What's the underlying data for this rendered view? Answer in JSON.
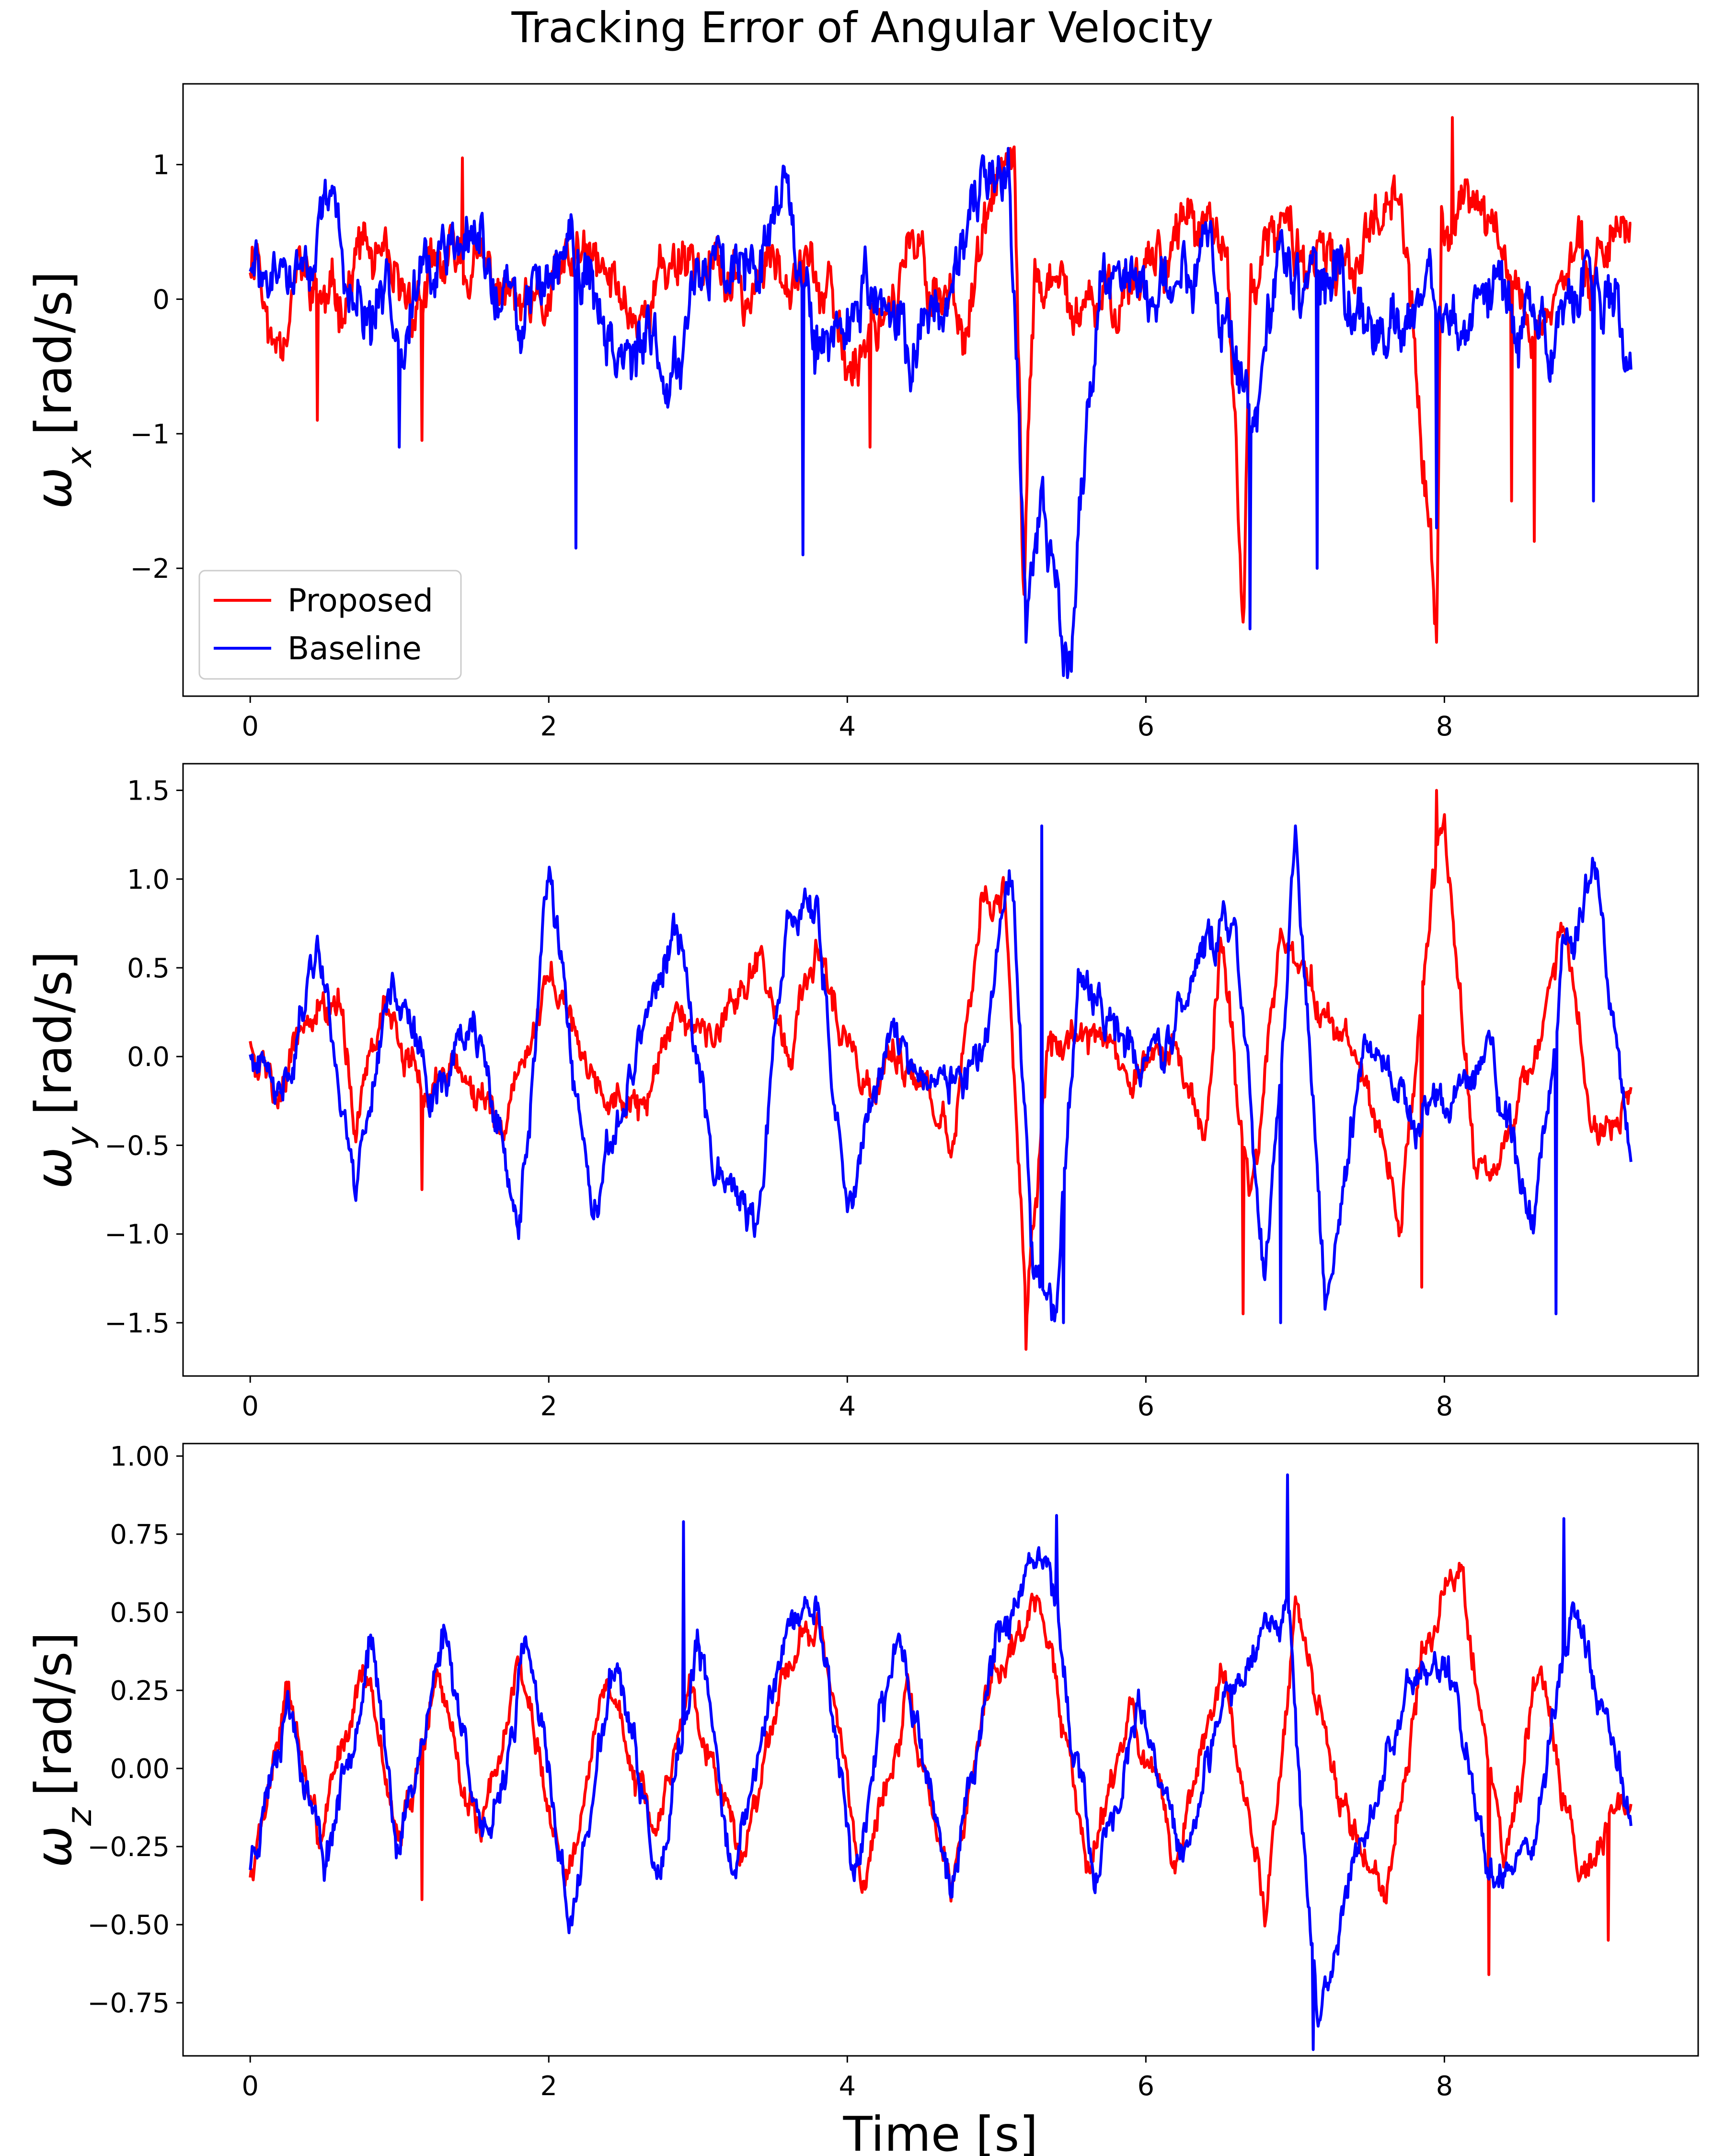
{
  "figure_title": "Tracking Error of Angular Velocity",
  "colors": {
    "proposed": "#ff0000",
    "baseline": "#0000ff"
  },
  "legend": {
    "placement": "lower-left",
    "entries": [
      "Proposed",
      "Baseline"
    ]
  },
  "chart_data": [
    {
      "type": "line",
      "title": "Tracking Error of Angular Velocity",
      "ylabel_symbol": "ω",
      "ylabel_sub": "x",
      "ylabel_unit": "[rad/s]",
      "xlabel": "",
      "xlim": [
        -0.45,
        9.7
      ],
      "ylim": [
        -2.95,
        1.6
      ],
      "xticks": [
        0,
        2,
        4,
        6,
        8
      ],
      "xtick_labels": [
        "0",
        "2",
        "4",
        "6",
        "8"
      ],
      "yticks": [
        1,
        0,
        -1,
        -2
      ],
      "ytick_labels": [
        "1",
        "0",
        "−1",
        "−2"
      ],
      "t_end": 9.25,
      "series": [
        {
          "name": "Proposed",
          "color": "#ff0000",
          "key_t": [
            0,
            0.05,
            0.1,
            0.15,
            0.3,
            0.55,
            0.75,
            1.0,
            1.4,
            1.65,
            1.9,
            2.2,
            2.6,
            2.9,
            3.3,
            3.7,
            4.0,
            4.4,
            4.8,
            5.05,
            5.12,
            5.18,
            5.25,
            5.6,
            6.0,
            6.3,
            6.55,
            6.65,
            6.7,
            6.9,
            7.3,
            7.7,
            7.95,
            7.98,
            8.2,
            8.6,
            9.0,
            9.25
          ],
          "key_v": [
            0.3,
            0.5,
            -0.1,
            -0.4,
            0.2,
            -0.1,
            0.4,
            -0.1,
            0.3,
            0.1,
            -0.2,
            0.3,
            -0.1,
            0.4,
            0.0,
            0.5,
            -0.5,
            0.3,
            -0.1,
            1.0,
            0.8,
            -2.3,
            0.2,
            -0.2,
            0.3,
            0.6,
            0.2,
            -2.4,
            0.1,
            0.5,
            0.1,
            1.0,
            -2.5,
            0.5,
            0.8,
            -0.2,
            0.4,
            0.6
          ],
          "noise": 0.28,
          "spikes": [
            [
              0.45,
              -0.9
            ],
            [
              1.15,
              -1.05
            ],
            [
              1.42,
              1.05
            ],
            [
              3.7,
              -1.2
            ],
            [
              4.15,
              -1.1
            ],
            [
              6.65,
              -2.4
            ],
            [
              7.95,
              -2.55
            ],
            [
              8.05,
              1.35
            ],
            [
              8.45,
              -1.5
            ],
            [
              8.6,
              -1.8
            ]
          ],
          "seed": 11
        },
        {
          "name": "Baseline",
          "color": "#0000ff",
          "key_t": [
            0,
            0.1,
            0.3,
            0.55,
            0.8,
            1.1,
            1.5,
            1.8,
            2.1,
            2.4,
            2.8,
            3.0,
            3.3,
            3.6,
            3.8,
            4.1,
            4.4,
            4.8,
            5.08,
            5.2,
            5.3,
            5.5,
            5.7,
            6.0,
            6.4,
            6.7,
            6.9,
            7.2,
            7.6,
            8.0,
            8.3,
            8.7,
            9.0,
            9.25
          ],
          "key_v": [
            0.2,
            0.1,
            0.2,
            0.6,
            -0.3,
            0.1,
            0.4,
            -0.2,
            0.5,
            -0.2,
            -0.6,
            0.3,
            0.4,
            0.9,
            -0.5,
            0.1,
            -0.4,
            0.3,
            1.2,
            -2.2,
            -1.5,
            -2.6,
            0.3,
            0.0,
            0.4,
            -1.0,
            0.2,
            0.1,
            -0.3,
            0.0,
            0.1,
            -0.4,
            0.3,
            -0.3
          ],
          "noise": 0.32,
          "spikes": [
            [
              1.0,
              -1.1
            ],
            [
              2.18,
              -1.85
            ],
            [
              3.7,
              -1.9
            ],
            [
              5.2,
              -2.55
            ],
            [
              5.48,
              -2.75
            ],
            [
              6.7,
              -2.45
            ],
            [
              7.15,
              -2.0
            ],
            [
              7.95,
              -1.7
            ],
            [
              9.0,
              -1.5
            ]
          ],
          "seed": 29
        }
      ]
    },
    {
      "type": "line",
      "ylabel_symbol": "ω",
      "ylabel_sub": "y",
      "ylabel_unit": "[rad/s]",
      "xlabel": "",
      "xlim": [
        -0.45,
        9.7
      ],
      "ylim": [
        -1.8,
        1.65
      ],
      "xticks": [
        0,
        2,
        4,
        6,
        8
      ],
      "xtick_labels": [
        "0",
        "2",
        "4",
        "6",
        "8"
      ],
      "yticks": [
        1.5,
        1.0,
        0.5,
        0.0,
        -0.5,
        -1.0,
        -1.5
      ],
      "ytick_labels": [
        "1.5",
        "1.0",
        "0.5",
        "0.0",
        "−0.5",
        "−1.0",
        "−1.5"
      ],
      "t_end": 9.25,
      "series": [
        {
          "name": "Proposed",
          "color": "#ff0000",
          "key_t": [
            0,
            0.15,
            0.4,
            0.6,
            0.7,
            0.9,
            1.15,
            1.3,
            1.7,
            2.0,
            2.3,
            2.6,
            2.9,
            3.1,
            3.4,
            3.6,
            3.8,
            4.1,
            4.4,
            4.7,
            4.9,
            5.05,
            5.2,
            5.35,
            5.6,
            5.9,
            6.2,
            6.4,
            6.5,
            6.7,
            6.9,
            7.2,
            7.5,
            7.7,
            7.9,
            8.0,
            8.2,
            8.5,
            8.8,
            9.0,
            9.25
          ],
          "key_v": [
            0.1,
            -0.2,
            0.3,
            0.3,
            -0.4,
            0.4,
            -0.3,
            0.0,
            -0.5,
            0.5,
            -0.1,
            -0.3,
            0.2,
            0.1,
            0.6,
            0.0,
            0.6,
            -0.2,
            0.0,
            -0.5,
            0.8,
            0.9,
            -1.4,
            0.0,
            0.2,
            -0.1,
            0.0,
            -0.5,
            0.7,
            -0.8,
            0.6,
            0.3,
            -0.2,
            -1.0,
            0.8,
            1.3,
            -0.6,
            -0.3,
            0.7,
            -0.4,
            -0.1
          ],
          "noise": 0.14,
          "spikes": [
            [
              1.15,
              -0.75
            ],
            [
              5.2,
              -1.65
            ],
            [
              6.65,
              -1.45
            ],
            [
              7.95,
              1.5
            ],
            [
              7.85,
              -1.3
            ]
          ],
          "seed": 5
        },
        {
          "name": "Baseline",
          "color": "#0000ff",
          "key_t": [
            0,
            0.2,
            0.45,
            0.7,
            0.95,
            1.2,
            1.5,
            1.8,
            2.0,
            2.3,
            2.6,
            2.85,
            3.1,
            3.4,
            3.6,
            3.8,
            4.0,
            4.3,
            4.6,
            4.9,
            5.1,
            5.25,
            5.4,
            5.55,
            5.8,
            6.1,
            6.4,
            6.6,
            6.8,
            7.0,
            7.2,
            7.5,
            7.8,
            8.0,
            8.3,
            8.6,
            8.8,
            9.0,
            9.25
          ],
          "key_v": [
            0.0,
            -0.3,
            0.7,
            -0.7,
            0.5,
            -0.2,
            0.2,
            -1.0,
            1.0,
            -1.0,
            0.1,
            0.7,
            -0.5,
            -1.0,
            0.8,
            0.8,
            -0.9,
            0.2,
            -0.2,
            0.0,
            0.9,
            -1.3,
            -1.4,
            0.4,
            0.1,
            0.0,
            0.6,
            0.8,
            -1.3,
            1.2,
            -1.3,
            0.2,
            -0.5,
            -0.3,
            0.0,
            -0.9,
            0.5,
            1.0,
            -0.6
          ],
          "noise": 0.15,
          "spikes": [
            [
              5.45,
              -1.5
            ],
            [
              6.9,
              -1.5
            ],
            [
              8.75,
              -1.45
            ],
            [
              7.0,
              1.3
            ],
            [
              5.3,
              1.3
            ]
          ],
          "seed": 41
        }
      ]
    },
    {
      "type": "line",
      "ylabel_symbol": "ω",
      "ylabel_sub": "z",
      "ylabel_unit": "[rad/s]",
      "xlabel": "Time [s]",
      "xlim": [
        -0.45,
        9.7
      ],
      "ylim": [
        -0.92,
        1.04
      ],
      "xticks": [
        0,
        2,
        4,
        6,
        8
      ],
      "xtick_labels": [
        "0",
        "2",
        "4",
        "6",
        "8"
      ],
      "yticks": [
        1.0,
        0.75,
        0.5,
        0.25,
        0.0,
        -0.25,
        -0.5,
        -0.75
      ],
      "ytick_labels": [
        "1.00",
        "0.75",
        "0.50",
        "0.25",
        "0.00",
        "−0.25",
        "−0.50",
        "−0.75"
      ],
      "t_end": 9.25,
      "series": [
        {
          "name": "Proposed",
          "color": "#ff0000",
          "key_t": [
            0,
            0.25,
            0.45,
            0.75,
            1.0,
            1.25,
            1.55,
            1.8,
            2.1,
            2.4,
            2.7,
            2.95,
            3.3,
            3.55,
            3.8,
            4.1,
            4.4,
            4.7,
            4.95,
            5.3,
            5.6,
            5.9,
            6.2,
            6.5,
            6.8,
            7.0,
            7.3,
            7.6,
            7.85,
            8.1,
            8.4,
            8.65,
            8.9,
            9.25
          ],
          "key_v": [
            -0.35,
            0.28,
            -0.25,
            0.35,
            -0.25,
            0.3,
            -0.25,
            0.35,
            -0.35,
            0.3,
            -0.25,
            0.3,
            -0.3,
            0.3,
            0.5,
            -0.35,
            0.2,
            -0.4,
            0.3,
            0.55,
            -0.3,
            0.2,
            -0.3,
            0.3,
            -0.45,
            0.5,
            -0.1,
            -0.4,
            0.35,
            0.65,
            -0.3,
            0.3,
            -0.3,
            -0.1
          ],
          "noise": 0.07,
          "spikes": [
            [
              1.15,
              -0.42
            ],
            [
              8.3,
              -0.66
            ],
            [
              9.1,
              -0.55
            ]
          ],
          "seed": 7
        },
        {
          "name": "Baseline",
          "color": "#0000ff",
          "key_t": [
            0,
            0.25,
            0.5,
            0.8,
            1.0,
            1.3,
            1.6,
            1.85,
            2.15,
            2.45,
            2.75,
            3.0,
            3.25,
            3.55,
            3.8,
            4.05,
            4.35,
            4.7,
            5.0,
            5.35,
            5.65,
            5.95,
            6.25,
            6.55,
            6.8,
            6.95,
            7.15,
            7.45,
            7.8,
            8.0,
            8.3,
            8.6,
            8.85,
            9.25
          ],
          "key_v": [
            -0.3,
            0.25,
            -0.3,
            0.4,
            -0.25,
            0.45,
            -0.3,
            0.4,
            -0.5,
            0.35,
            -0.4,
            0.4,
            -0.35,
            0.4,
            0.55,
            -0.35,
            0.45,
            -0.4,
            0.45,
            0.65,
            -0.35,
            0.15,
            -0.3,
            0.2,
            0.5,
            0.55,
            -0.85,
            -0.2,
            0.3,
            0.35,
            -0.3,
            -0.25,
            0.55,
            -0.15
          ],
          "noise": 0.08,
          "spikes": [
            [
              2.9,
              0.79
            ],
            [
              6.95,
              0.94
            ],
            [
              7.12,
              -0.9
            ],
            [
              5.4,
              0.81
            ],
            [
              8.8,
              0.8
            ]
          ],
          "seed": 23
        }
      ]
    }
  ]
}
